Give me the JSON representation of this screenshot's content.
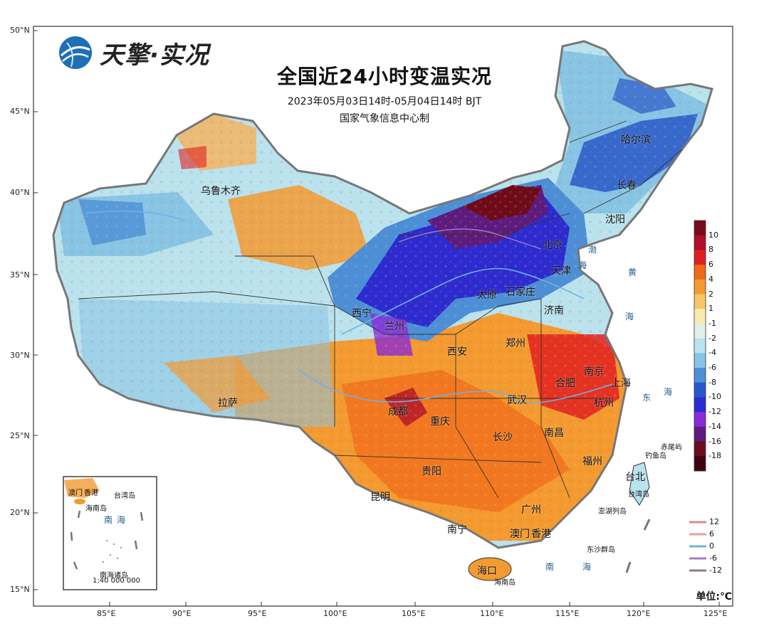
{
  "logo": {
    "text": "天擎·实况"
  },
  "title": "全国近24小时变温实况",
  "subtitle": "2023年05月03日14时-05月04日14时 BJT",
  "agency": "国家气象信息中心制",
  "unit": "单位:℃",
  "lat_labels": [
    "50°N",
    "45°N",
    "40°N",
    "35°N",
    "30°N",
    "25°N",
    "20°N",
    "15°N"
  ],
  "lon_labels": [
    "85°E",
    "90°E",
    "95°E",
    "100°E",
    "105°E",
    "110°E",
    "115°E",
    "120°E",
    "125°E"
  ],
  "cities": [
    "乌鲁木齐",
    "哈尔滨",
    "长春",
    "沈阳",
    "北京",
    "天津",
    "太原",
    "石家庄",
    "济南",
    "西宁",
    "兰州",
    "西安",
    "郑州",
    "南京",
    "合肥",
    "上海",
    "杭州",
    "武汉",
    "成都",
    "重庆",
    "长沙",
    "南昌",
    "拉萨",
    "贵阳",
    "福州",
    "昆明",
    "台北",
    "南宁",
    "广州",
    "澳门",
    "香港",
    "海口"
  ],
  "seas": [
    "渤",
    "海",
    "黄",
    "海",
    "东",
    "海",
    "南",
    "海"
  ],
  "islands": [
    "赤尾屿",
    "钓鱼岛",
    "台湾岛",
    "澎湖列岛",
    "东沙群岛",
    "海南岛"
  ],
  "inset": {
    "labels": [
      "香港",
      "澳门",
      "台湾岛",
      "海南岛",
      "南",
      "海",
      "南海诸岛"
    ],
    "scale": "1:40 000 000"
  },
  "colorbar": {
    "labels": [
      "10",
      "8",
      "6",
      "4",
      "2",
      "1",
      "-1",
      "-2",
      "-4",
      "-6",
      "-8",
      "-10",
      "-12",
      "-14",
      "-16",
      "-18"
    ],
    "colors": [
      "#7a0a1e",
      "#b0102a",
      "#e02020",
      "#f06a1a",
      "#f39a30",
      "#f7c765",
      "#f9eab2",
      "#dff1e8",
      "#b9e3ef",
      "#87c5e6",
      "#4a8fd8",
      "#2758c9",
      "#2b2bd1",
      "#8a2bd6",
      "#5c1b7e",
      "#6e0b1a",
      "#3e0510"
    ]
  },
  "river_legend": {
    "labels": [
      "12",
      "6",
      "0",
      "-6",
      "-12"
    ],
    "colors": [
      "#d98a8a",
      "#e8a0a0",
      "#6fb0e8",
      "#a37bc9",
      "#8f7d80"
    ]
  }
}
